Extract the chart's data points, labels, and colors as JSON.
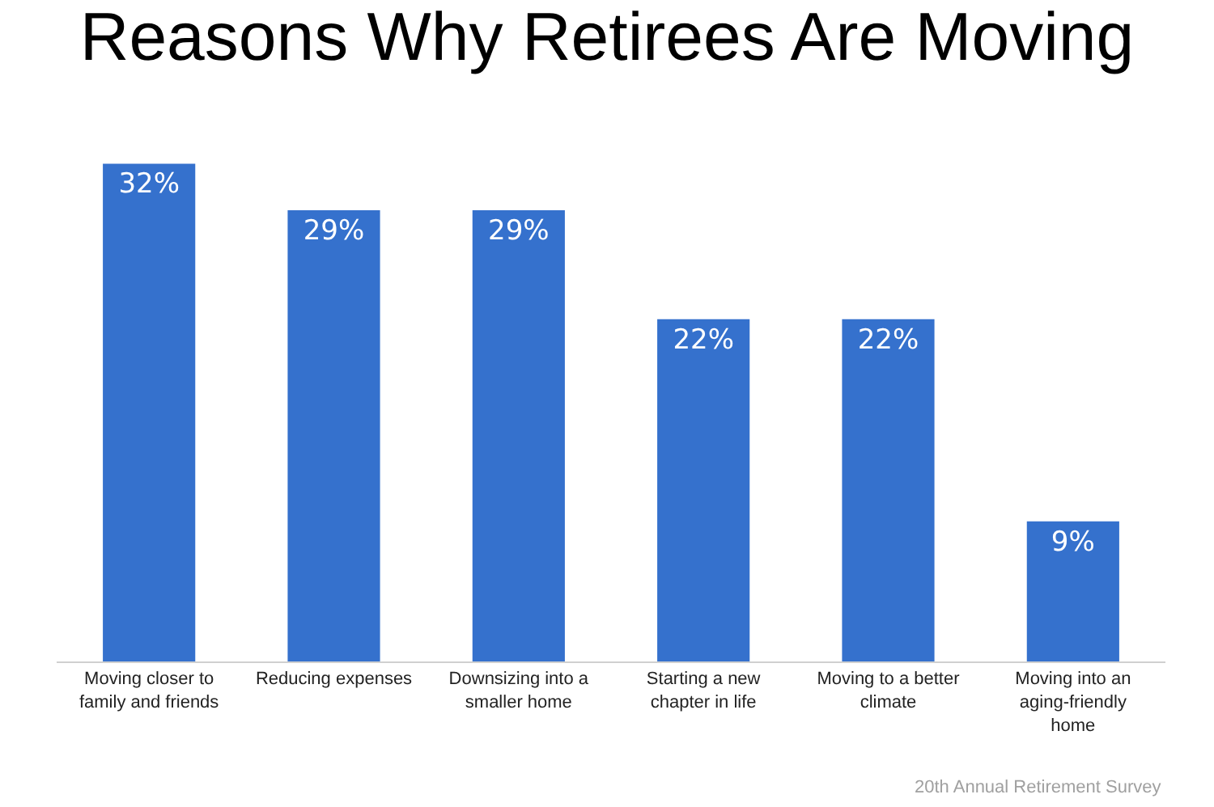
{
  "chart_data": {
    "type": "bar",
    "title": "Reasons Why Retirees Are Moving",
    "categories": [
      "Moving closer to family and friends",
      "Reducing expenses",
      "Downsizing into a smaller home",
      "Starting a new chapter in life",
      "Moving to a better climate",
      "Moving into an aging-friendly home"
    ],
    "values": [
      32,
      29,
      29,
      22,
      22,
      9
    ],
    "value_labels": [
      "32%",
      "29%",
      "29%",
      "22%",
      "22%",
      "9%"
    ],
    "color": "#3571cd",
    "annotations": [
      "20th Annual Retirement Survey"
    ]
  }
}
